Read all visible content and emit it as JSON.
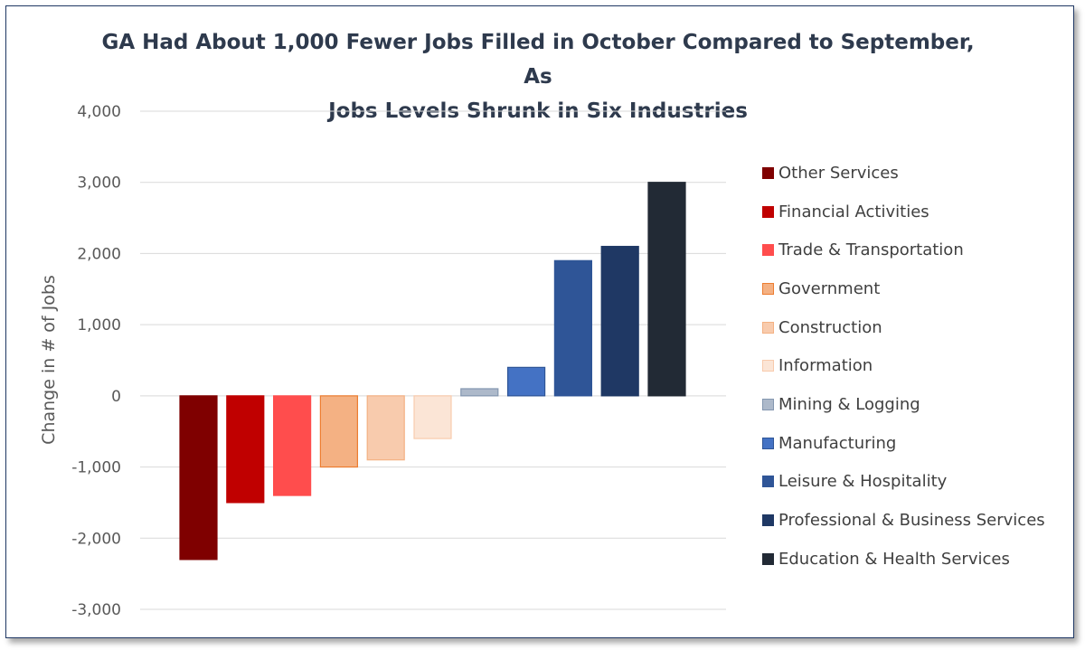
{
  "chart_data": {
    "type": "bar",
    "title_lines": [
      "GA Had About 1,000 Fewer Jobs Filled in October Compared to September, As",
      "Jobs Levels Shrunk in Six Industries"
    ],
    "xlabel": "",
    "ylabel": "Change in # of Jobs",
    "ylim": [
      -3000,
      4000
    ],
    "yticks": [
      4000,
      3000,
      2000,
      1000,
      0,
      -1000,
      -2000,
      -3000
    ],
    "ytick_labels": [
      "4,000",
      "3,000",
      "2,000",
      "1,000",
      "0",
      "-1,000",
      "-2,000",
      "-3,000"
    ],
    "grid": true,
    "legend_position": "right",
    "series": [
      {
        "name": "Other Services",
        "value": -2300,
        "color": "#7f0000",
        "border": "#7f0000"
      },
      {
        "name": "Financial Activities",
        "value": -1500,
        "color": "#c00000",
        "border": "#c00000"
      },
      {
        "name": "Trade & Transportation",
        "value": -1400,
        "color": "#ff4d4d",
        "border": "#ff4d4d"
      },
      {
        "name": "Government",
        "value": -1000,
        "color": "#f4b183",
        "border": "#ed7d31"
      },
      {
        "name": "Construction",
        "value": -900,
        "color": "#f8cbad",
        "border": "#f4b183"
      },
      {
        "name": "Information",
        "value": -600,
        "color": "#fbe5d6",
        "border": "#f8cbad"
      },
      {
        "name": "Mining & Logging",
        "value": 100,
        "color": "#adb9ca",
        "border": "#8497b0"
      },
      {
        "name": "Manufacturing",
        "value": 400,
        "color": "#4472c4",
        "border": "#2f5597"
      },
      {
        "name": "Leisure & Hospitality",
        "value": 1900,
        "color": "#2f5597",
        "border": "#2f5597"
      },
      {
        "name": "Professional & Business Services",
        "value": 2100,
        "color": "#1f3864",
        "border": "#1f3864"
      },
      {
        "name": "Education & Health Services",
        "value": 3000,
        "color": "#222a35",
        "border": "#222a35"
      }
    ]
  }
}
